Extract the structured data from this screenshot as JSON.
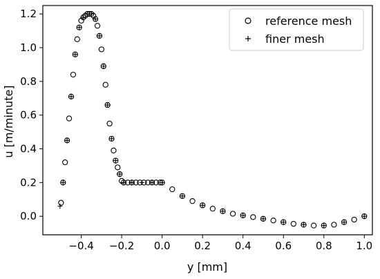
{
  "chart_data": {
    "type": "scatter",
    "title": "",
    "xlabel": "y [mm]",
    "ylabel": "u [m/minute]",
    "xlim": [
      -0.59,
      1.04
    ],
    "ylim": [
      -0.11,
      1.25
    ],
    "xticks": [
      -0.4,
      -0.2,
      0.0,
      0.2,
      0.4,
      0.6,
      0.8,
      1.0
    ],
    "yticks": [
      0.0,
      0.2,
      0.4,
      0.6,
      0.8,
      1.0,
      1.2
    ],
    "xtick_labels": [
      "−0.4",
      "−0.2",
      "0.0",
      "0.2",
      "0.4",
      "0.6",
      "0.8",
      "1.0"
    ],
    "ytick_labels": [
      "0.0",
      "0.2",
      "0.4",
      "0.6",
      "0.8",
      "1.0",
      "1.2"
    ],
    "grid": false,
    "legend_position": "top-right",
    "series": [
      {
        "name": "reference mesh",
        "marker": "circle-open",
        "color": "#000000",
        "x": [
          -0.5,
          -0.49,
          -0.48,
          -0.47,
          -0.46,
          -0.45,
          -0.44,
          -0.43,
          -0.42,
          -0.41,
          -0.4,
          -0.39,
          -0.38,
          -0.37,
          -0.36,
          -0.35,
          -0.34,
          -0.33,
          -0.32,
          -0.31,
          -0.3,
          -0.29,
          -0.28,
          -0.27,
          -0.26,
          -0.25,
          -0.24,
          -0.23,
          -0.22,
          -0.21,
          -0.2,
          -0.19,
          -0.17,
          -0.15,
          -0.13,
          -0.11,
          -0.09,
          -0.07,
          -0.05,
          -0.03,
          -0.01,
          0.0,
          0.05,
          0.1,
          0.15,
          0.2,
          0.25,
          0.3,
          0.35,
          0.4,
          0.45,
          0.5,
          0.55,
          0.6,
          0.65,
          0.7,
          0.75,
          0.8,
          0.85,
          0.9,
          0.95,
          1.0
        ],
        "y": [
          0.08,
          0.2,
          0.32,
          0.45,
          0.58,
          0.71,
          0.84,
          0.96,
          1.05,
          1.12,
          1.16,
          1.18,
          1.19,
          1.2,
          1.2,
          1.2,
          1.19,
          1.17,
          1.13,
          1.07,
          0.99,
          0.89,
          0.78,
          0.66,
          0.55,
          0.46,
          0.39,
          0.33,
          0.29,
          0.25,
          0.21,
          0.2,
          0.2,
          0.2,
          0.2,
          0.2,
          0.2,
          0.2,
          0.2,
          0.2,
          0.2,
          0.2,
          0.16,
          0.12,
          0.09,
          0.065,
          0.045,
          0.03,
          0.015,
          0.005,
          -0.005,
          -0.015,
          -0.025,
          -0.035,
          -0.045,
          -0.05,
          -0.055,
          -0.055,
          -0.05,
          -0.035,
          -0.02,
          0.0
        ]
      },
      {
        "name": "finer mesh",
        "marker": "plus",
        "color": "#000000",
        "x": [
          -0.505,
          -0.49,
          -0.47,
          -0.45,
          -0.43,
          -0.41,
          -0.39,
          -0.37,
          -0.35,
          -0.33,
          -0.31,
          -0.29,
          -0.27,
          -0.25,
          -0.23,
          -0.21,
          -0.19,
          -0.15,
          -0.1,
          -0.05,
          0.0,
          0.1,
          0.2,
          0.3,
          0.4,
          0.5,
          0.6,
          0.7,
          0.8,
          0.9,
          1.0
        ],
        "y": [
          0.06,
          0.2,
          0.45,
          0.71,
          0.96,
          1.12,
          1.18,
          1.2,
          1.2,
          1.17,
          1.07,
          0.89,
          0.66,
          0.46,
          0.33,
          0.25,
          0.2,
          0.2,
          0.2,
          0.2,
          0.2,
          0.12,
          0.065,
          0.03,
          0.005,
          -0.015,
          -0.035,
          -0.05,
          -0.055,
          -0.035,
          0.0
        ]
      }
    ]
  }
}
